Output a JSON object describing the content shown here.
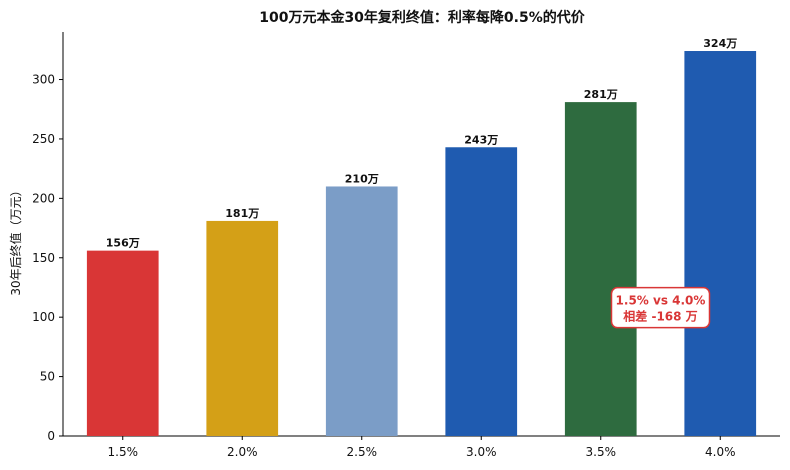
{
  "chart_data": {
    "type": "bar",
    "title": "100万元本金30年复利终值：利率每降0.5%的代价",
    "xlabel": "",
    "ylabel": "30年后终值（万元）",
    "categories": [
      "1.5%",
      "2.0%",
      "2.5%",
      "3.0%",
      "3.5%",
      "4.0%"
    ],
    "values": [
      156,
      181,
      210,
      243,
      281,
      324
    ],
    "data_labels": [
      "156万",
      "181万",
      "210万",
      "243万",
      "281万",
      "324万"
    ],
    "colors": [
      "#d93636",
      "#d4a017",
      "#7b9dc7",
      "#1f5bb0",
      "#2e6b3f",
      "#1f5bb0"
    ],
    "ylim": [
      0,
      340
    ],
    "yticks": [
      0,
      50,
      100,
      150,
      200,
      250,
      300
    ],
    "grid": false,
    "annotation": {
      "line1": "1.5% vs 4.0%",
      "line2": "相差 -168 万",
      "text_color": "#d93636",
      "border_color": "#d93636"
    }
  }
}
